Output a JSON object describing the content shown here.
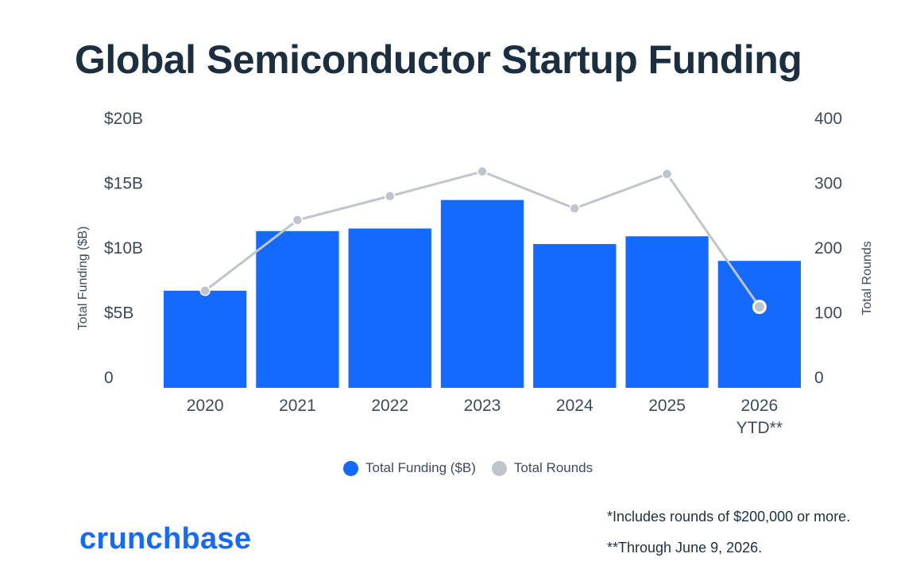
{
  "title": "Global Semiconductor Startup Funding",
  "colors": {
    "bar": "#146aff",
    "line": "#bfc5cb",
    "text": "#1c2f41"
  },
  "chart_data": {
    "type": "bar",
    "categories": [
      "2020",
      "2021",
      "2022",
      "2023",
      "2024",
      "2025",
      "2026 YTD**"
    ],
    "category_lines": [
      [
        "2020"
      ],
      [
        "2021"
      ],
      [
        "2022"
      ],
      [
        "2023"
      ],
      [
        "2024"
      ],
      [
        "2025"
      ],
      [
        "2026",
        "YTD**"
      ]
    ],
    "series": [
      {
        "name": "Total Funding ($B)",
        "type": "bar",
        "axis": "left",
        "values": [
          7.5,
          12.1,
          12.3,
          14.5,
          11.1,
          11.7,
          9.8
        ]
      },
      {
        "name": "Total Rounds",
        "type": "line",
        "axis": "right",
        "values": [
          150,
          259,
          296,
          334,
          277,
          330,
          125
        ]
      }
    ],
    "ylabel_left": "Total Funding ($B)",
    "ylabel_right": "Total Rounds",
    "ylim_left": [
      0,
      20
    ],
    "ylim_right": [
      0,
      400
    ],
    "yticks_left": [
      "0",
      "$5B",
      "$10B",
      "$15B",
      "$20B"
    ],
    "yticks_right": [
      "0",
      "100",
      "200",
      "300",
      "400"
    ],
    "grid": false,
    "legend": "bottom-center"
  },
  "legend": [
    {
      "label": "Total Funding ($B)",
      "color": "#146aff"
    },
    {
      "label": "Total Rounds",
      "color": "#bfc5cb"
    }
  ],
  "notes": [
    "*Includes rounds of $200,000 or more.",
    "**Through June 9, 2026."
  ],
  "logo": "crunchbase"
}
